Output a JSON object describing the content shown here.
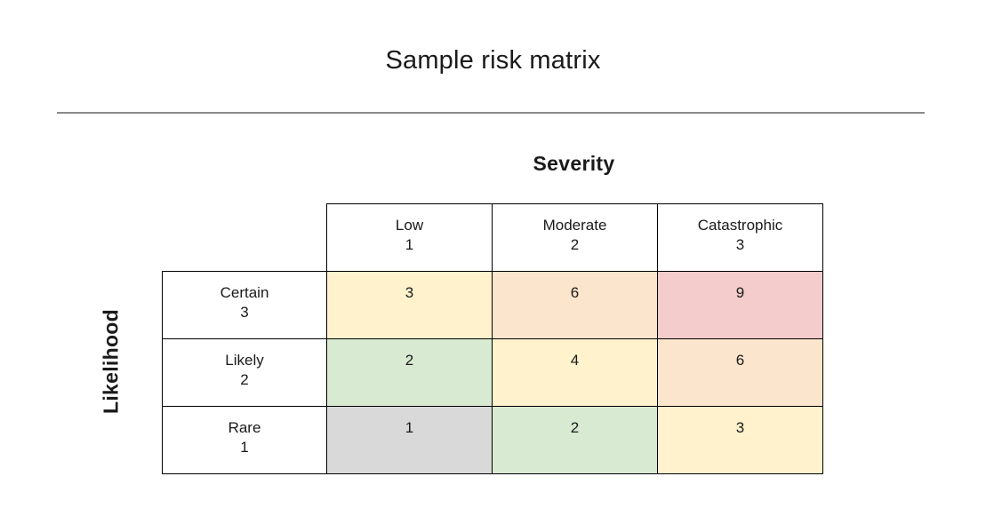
{
  "title": "Sample risk matrix",
  "axes": {
    "column_axis_label": "Severity",
    "row_axis_label": "Likelihood"
  },
  "columns": [
    {
      "label": "Low",
      "value": "1"
    },
    {
      "label": "Moderate",
      "value": "2"
    },
    {
      "label": "Catastrophic",
      "value": "3"
    }
  ],
  "rows": [
    {
      "label": "Certain",
      "value": "3",
      "cells": [
        "3",
        "6",
        "9"
      ]
    },
    {
      "label": "Likely",
      "value": "2",
      "cells": [
        "2",
        "4",
        "6"
      ]
    },
    {
      "label": "Rare",
      "value": "1",
      "cells": [
        "1",
        "2",
        "3"
      ]
    }
  ],
  "colors": {
    "score_1": "#d9d9d9",
    "score_2": "#d9ead3",
    "score_3_4": "#fff2cc",
    "score_6": "#fce5cd",
    "score_9": "#f4cccc",
    "header_bg": "#ffffff",
    "border": "#000000"
  }
}
